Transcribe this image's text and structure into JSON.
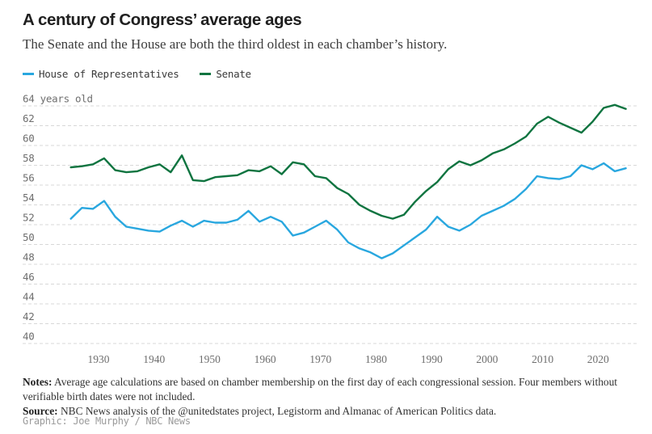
{
  "header": {
    "title": "A century of Congress’ average ages",
    "subtitle": "The Senate and the House are both the third oldest in each chamber’s history."
  },
  "legend": {
    "items": [
      {
        "label": "House of Representatives",
        "color": "#29a7df"
      },
      {
        "label": "Senate",
        "color": "#0f7440"
      }
    ]
  },
  "chart_data": {
    "type": "line",
    "title": "A century of Congress’ average ages",
    "x": [
      1925,
      1927,
      1929,
      1931,
      1933,
      1935,
      1937,
      1939,
      1941,
      1943,
      1945,
      1947,
      1949,
      1951,
      1953,
      1955,
      1957,
      1959,
      1961,
      1963,
      1965,
      1967,
      1969,
      1971,
      1973,
      1975,
      1977,
      1979,
      1981,
      1983,
      1985,
      1987,
      1989,
      1991,
      1993,
      1995,
      1997,
      1999,
      2001,
      2003,
      2005,
      2007,
      2009,
      2011,
      2013,
      2015,
      2017,
      2019,
      2021,
      2023,
      2025
    ],
    "series": [
      {
        "name": "House of Representatives",
        "color": "#29a7df",
        "values": [
          52.6,
          53.7,
          53.6,
          54.4,
          52.8,
          51.8,
          51.6,
          51.4,
          51.3,
          51.9,
          52.4,
          51.8,
          52.4,
          52.2,
          52.2,
          52.5,
          53.4,
          52.3,
          52.8,
          52.3,
          50.9,
          51.2,
          51.8,
          52.4,
          51.5,
          50.2,
          49.6,
          49.2,
          48.6,
          49.1,
          49.9,
          50.7,
          51.5,
          52.8,
          51.8,
          51.4,
          52.0,
          52.9,
          53.4,
          53.9,
          54.6,
          55.6,
          56.9,
          56.7,
          56.6,
          56.9,
          58.0,
          57.6,
          58.2,
          57.4,
          57.7
        ]
      },
      {
        "name": "Senate",
        "color": "#0f7440",
        "values": [
          57.8,
          57.9,
          58.1,
          58.7,
          57.5,
          57.3,
          57.4,
          57.8,
          58.1,
          57.3,
          59.0,
          56.5,
          56.4,
          56.8,
          56.9,
          57.0,
          57.5,
          57.4,
          57.9,
          57.1,
          58.3,
          58.1,
          56.9,
          56.7,
          55.7,
          55.1,
          54.0,
          53.4,
          52.9,
          52.6,
          53.0,
          54.3,
          55.4,
          56.3,
          57.6,
          58.4,
          58.0,
          58.5,
          59.2,
          59.6,
          60.2,
          60.9,
          62.2,
          62.9,
          62.3,
          61.8,
          61.3,
          62.4,
          63.8,
          64.1,
          63.7
        ]
      }
    ],
    "ylim": [
      40,
      64
    ],
    "yticks": [
      64,
      62,
      60,
      58,
      56,
      54,
      52,
      50,
      48,
      46,
      44,
      42,
      40
    ],
    "ytick_top_label": "64 years old",
    "xticks": [
      1930,
      1940,
      1950,
      1960,
      1970,
      1980,
      1990,
      2000,
      2010,
      2020
    ],
    "grid": "dashed horizontal",
    "legend_position": "top-left",
    "colors": {
      "grid": "#d8d8d8",
      "axis_text": "#6e6e6e"
    }
  },
  "notes": {
    "notes_label": "Notes:",
    "notes_text": " Average age calculations are based on chamber membership on the first day of each congressional session. Four members without verifiable birth dates were not included.",
    "source_label": "Source:",
    "source_text": " NBC News analysis of the @unitedstates project, Legistorm and Almanac of American Politics data.",
    "credit": "Graphic: Joe Murphy / NBC News"
  }
}
